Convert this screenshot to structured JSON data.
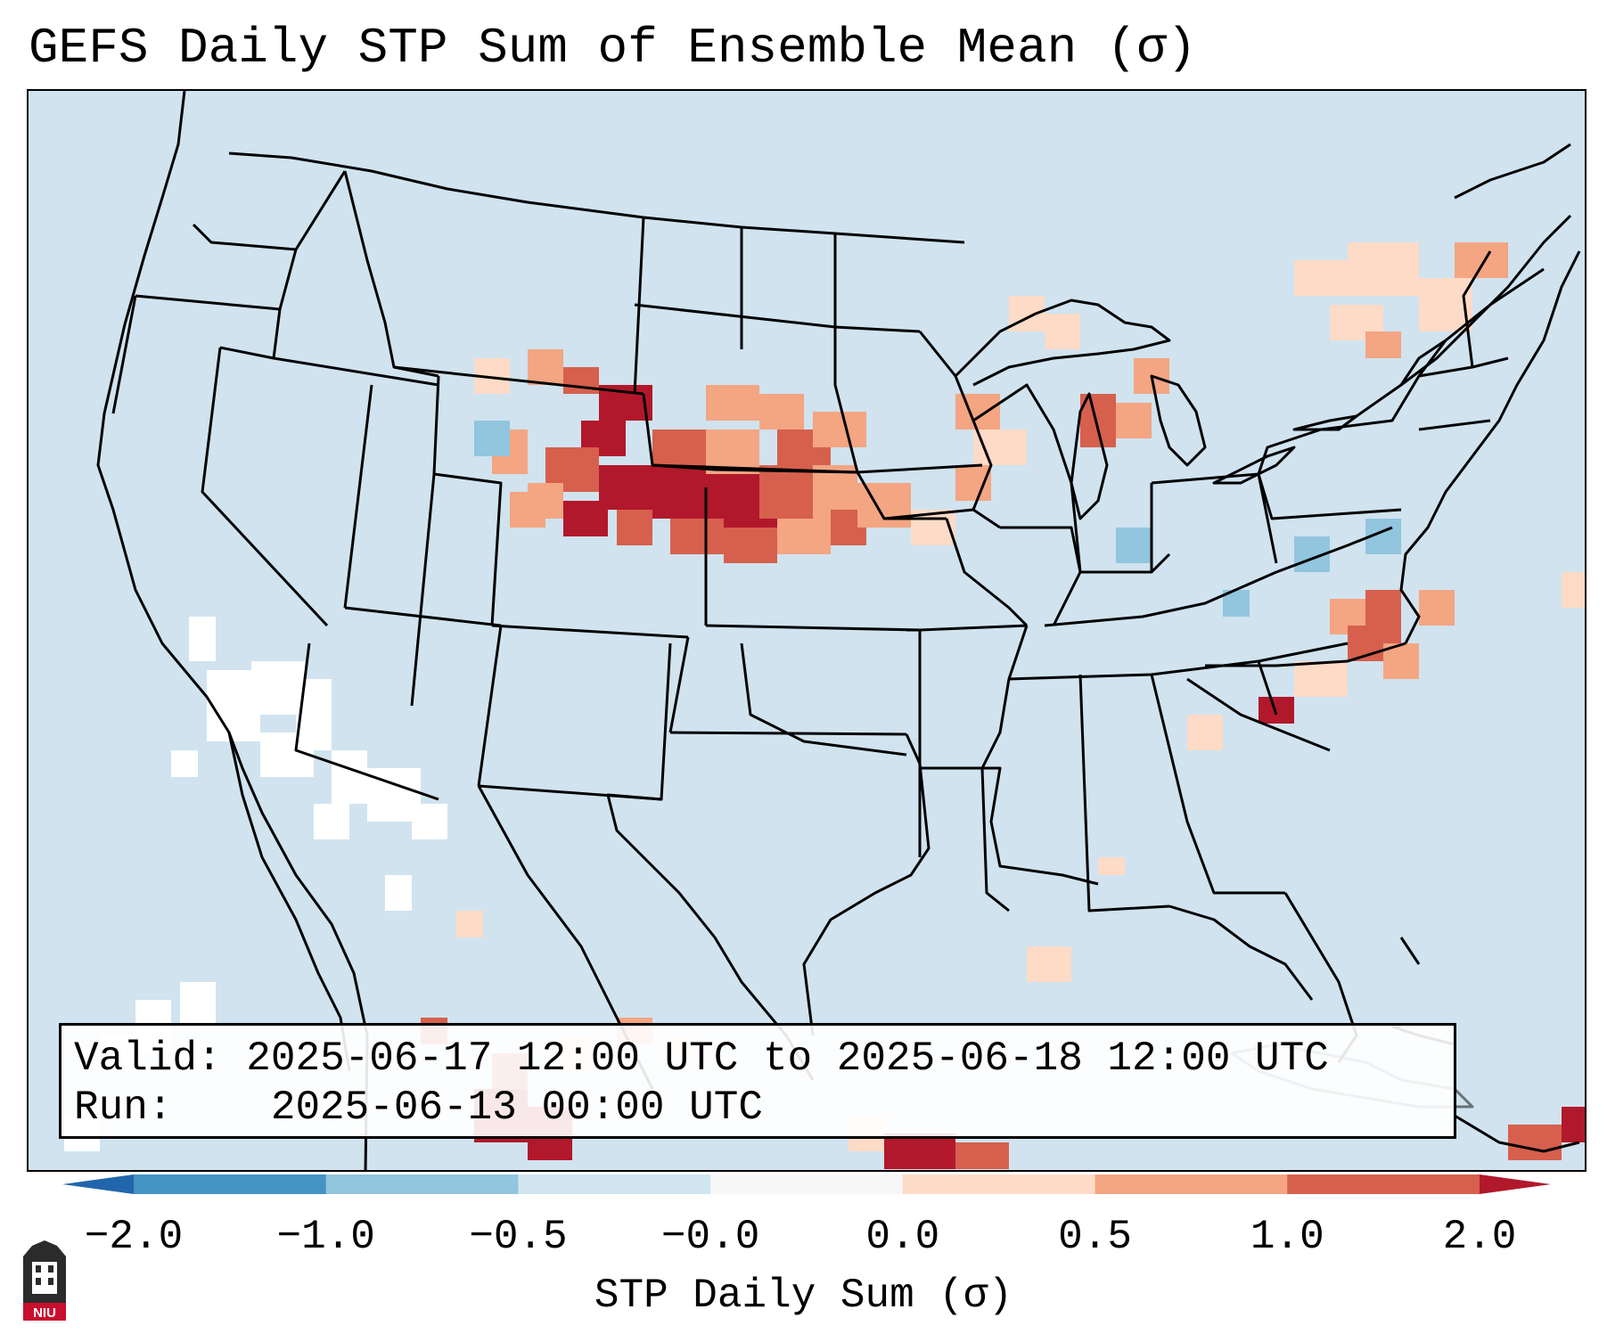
{
  "title": "GEFS Daily STP Sum of Ensemble Mean (σ)",
  "info": {
    "valid_label": "Valid:",
    "valid_value": "2025-06-17 12:00 UTC to 2025-06-18 12:00 UTC",
    "run_label": "Run:",
    "run_value": "2025-06-13 00:00 UTC"
  },
  "colorbar": {
    "label": "STP Daily Sum (σ)",
    "ticks": [
      "−2.0",
      "−1.0",
      "−0.5",
      "−0.0",
      "0.0",
      "0.5",
      "1.0",
      "2.0"
    ],
    "colors": [
      "#2166ac",
      "#4393c3",
      "#92c5de",
      "#d1e5f0",
      "#f7f7f7",
      "#fddbc7",
      "#f4a582",
      "#d6604d",
      "#b2182b"
    ]
  },
  "logo": {
    "text": "NIU"
  }
}
